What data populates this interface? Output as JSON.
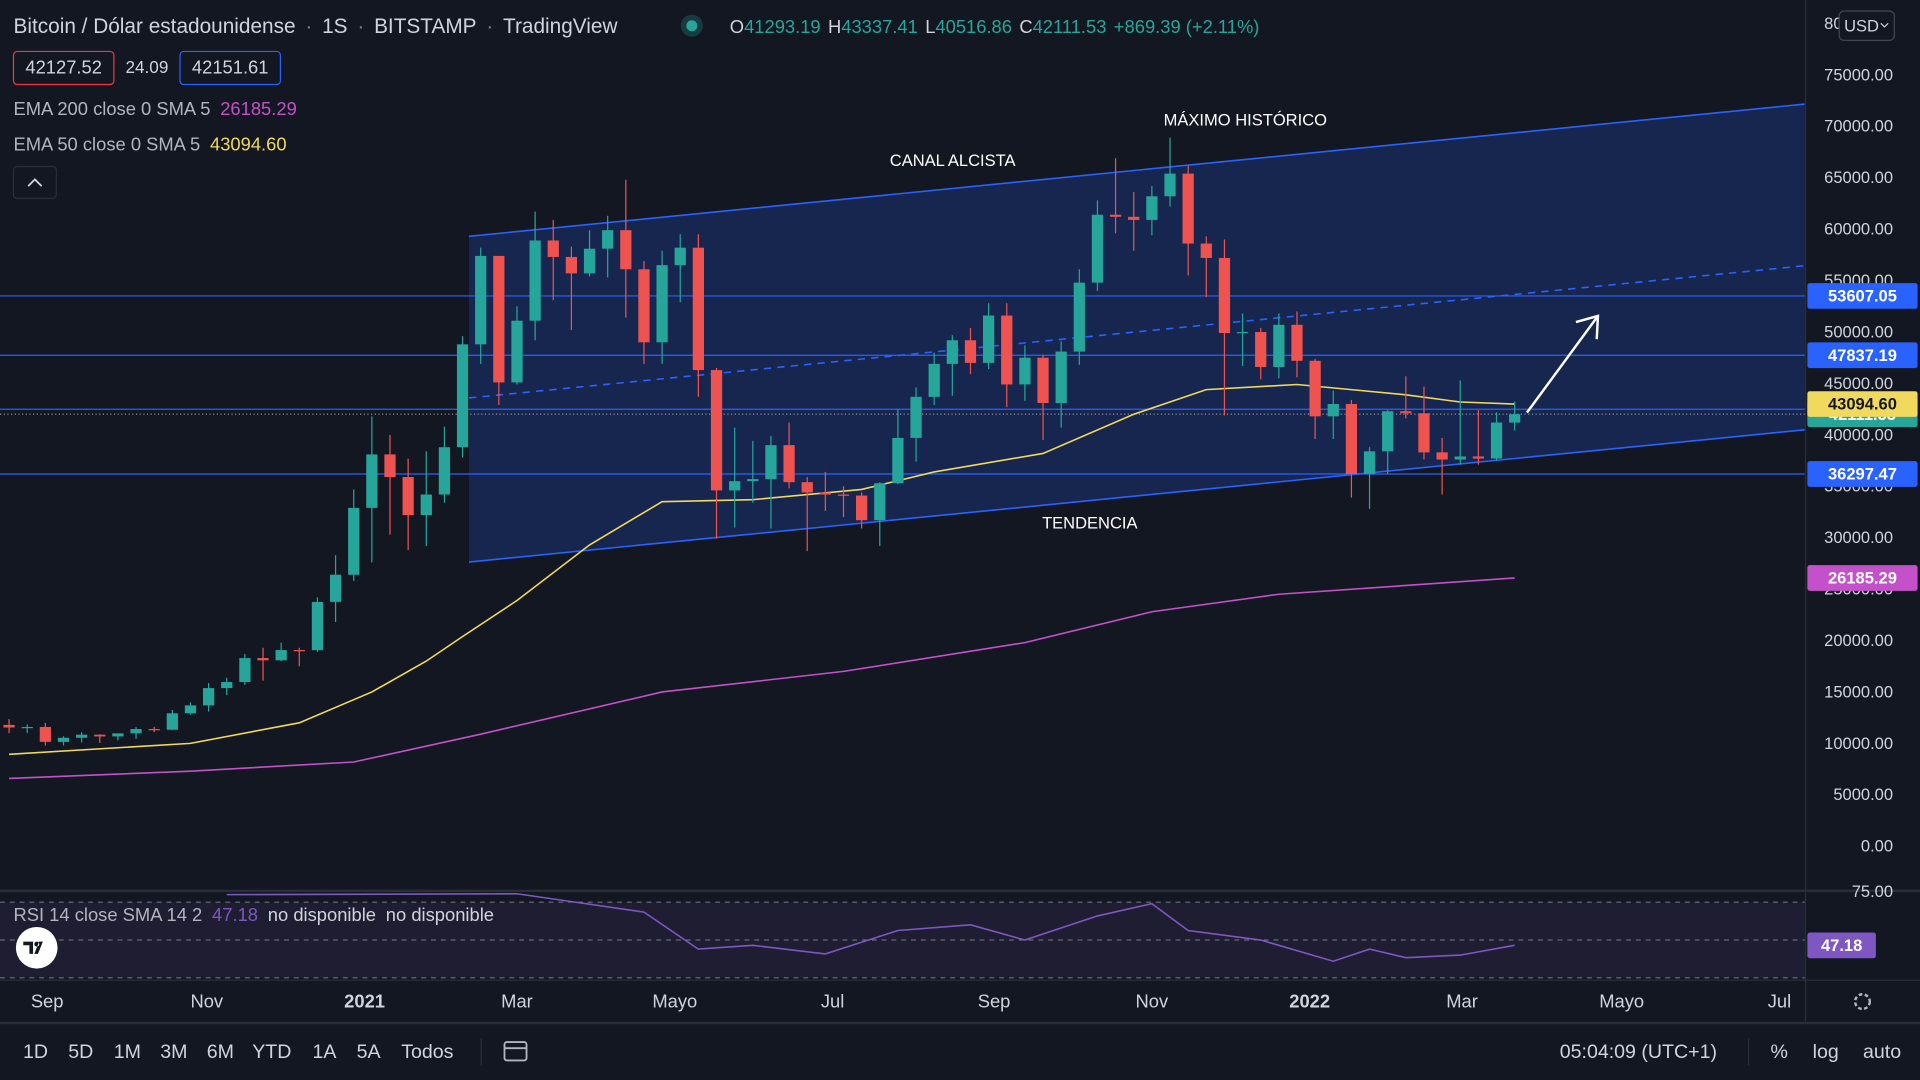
{
  "header": {
    "symbol": "Bitcoin / Dólar estadounidense",
    "separator": "·",
    "interval": "1S",
    "exchange": "BITSTAMP",
    "source": "TradingView",
    "ohlc_letters": [
      "O",
      "H",
      "L",
      "C"
    ],
    "change": "+869.39 (+2.11%)",
    "sell": "42127.52",
    "spread": "24.09",
    "buy": "42151.61",
    "currency": "USD"
  },
  "chart_data": [
    {
      "type": "candlestick",
      "up_color": "#26a69a",
      "down_color": "#ef5350",
      "open": [
        11900,
        11650,
        11700,
        10250,
        10650,
        10950,
        10780,
        11080,
        11500,
        11430,
        13030,
        13800,
        15480,
        16070,
        18400,
        18180,
        19180,
        19170,
        23860,
        26500,
        33000,
        38200,
        36000,
        32300,
        34300,
        38900,
        48900,
        57500,
        45200,
        51200,
        59000,
        57400,
        55800,
        58200,
        60000,
        56200,
        49100,
        56600,
        58300,
        46400,
        34700,
        35600,
        35800,
        39100,
        35500,
        34500,
        34300,
        34200,
        31800,
        35400,
        39800,
        43800,
        47000,
        49300,
        47100,
        51700,
        45000,
        47600,
        43200,
        48200,
        54900,
        61500,
        61300,
        61000,
        63300,
        65500,
        58700,
        57300,
        50000,
        50100,
        46700,
        50800,
        47300,
        41900,
        43100,
        36300,
        38500,
        42400,
        42200,
        38400,
        37700,
        38000,
        37800,
        41293.19
      ],
      "high": [
        12470,
        11950,
        12100,
        10800,
        11200,
        10990,
        11000,
        11700,
        11720,
        13350,
        14100,
        15970,
        16480,
        18800,
        19400,
        19900,
        19400,
        24300,
        28400,
        34800,
        41900,
        40100,
        37800,
        38500,
        40900,
        49700,
        58300,
        57500,
        52600,
        61800,
        61000,
        58400,
        60000,
        61400,
        64900,
        57000,
        58000,
        59600,
        59600,
        46600,
        40800,
        39500,
        40000,
        41300,
        36000,
        36500,
        35100,
        34500,
        35500,
        42600,
        44700,
        48100,
        49800,
        50500,
        52900,
        52900,
        48800,
        47900,
        49200,
        56200,
        62900,
        67000,
        63700,
        64300,
        69000,
        66300,
        59400,
        59100,
        51900,
        50500,
        51900,
        52100,
        47500,
        44400,
        43500,
        38900,
        42500,
        45800,
        44800,
        39800,
        45400,
        42500,
        42300,
        43337.41
      ],
      "low": [
        11100,
        11100,
        9900,
        9900,
        10200,
        10150,
        10400,
        10550,
        11200,
        11400,
        12900,
        13200,
        14800,
        15800,
        16200,
        18100,
        17600,
        19000,
        21900,
        25900,
        27700,
        30400,
        28900,
        29300,
        33500,
        37900,
        47000,
        43000,
        45000,
        49300,
        53200,
        50300,
        55500,
        55400,
        51500,
        47000,
        47000,
        53000,
        43800,
        30000,
        31100,
        33500,
        31000,
        34900,
        28800,
        32700,
        32100,
        31000,
        29300,
        35300,
        37500,
        43000,
        43900,
        46000,
        46500,
        42800,
        43400,
        39600,
        40800,
        46900,
        54100,
        59700,
        58000,
        59500,
        62300,
        55600,
        53500,
        42000,
        46800,
        45500,
        45600,
        45700,
        39700,
        39700,
        34000,
        32900,
        36300,
        41700,
        37700,
        34300,
        37200,
        37200,
        37600,
        40516.86
      ],
      "close": [
        11650,
        11700,
        10250,
        10650,
        10950,
        10780,
        11080,
        11500,
        11430,
        13030,
        13800,
        15480,
        16070,
        18400,
        18180,
        19180,
        19170,
        23860,
        26500,
        33000,
        38200,
        36000,
        32300,
        34300,
        38900,
        48900,
        57500,
        45200,
        51200,
        59000,
        57400,
        55800,
        58200,
        60000,
        56200,
        49100,
        56600,
        58300,
        46400,
        34700,
        35600,
        35800,
        39100,
        35500,
        34500,
        34300,
        34200,
        31800,
        35400,
        39800,
        43800,
        47000,
        49300,
        47100,
        51700,
        45000,
        47600,
        43200,
        48200,
        54900,
        61500,
        61300,
        61000,
        63300,
        65500,
        58700,
        57300,
        50000,
        50100,
        46700,
        50800,
        47300,
        41900,
        43100,
        36300,
        38500,
        42400,
        42200,
        38400,
        37700,
        38000,
        37800,
        41300,
        42111.53
      ],
      "xlim": [
        -0.5,
        99.0
      ],
      "xticks": [
        {
          "value": 2.1,
          "label": "Sep"
        },
        {
          "value": 10.9,
          "label": "Nov"
        },
        {
          "value": 19.6,
          "label": "2021"
        },
        {
          "value": 28,
          "label": "Mar"
        },
        {
          "value": 36.7,
          "label": "Mayo"
        },
        {
          "value": 45.4,
          "label": "Jul"
        },
        {
          "value": 54.3,
          "label": "Sep"
        },
        {
          "value": 63,
          "label": "Nov"
        },
        {
          "value": 71.7,
          "label": "2022"
        },
        {
          "value": 80.1,
          "label": "Mar"
        },
        {
          "value": 88.9,
          "label": "Mayo"
        },
        {
          "value": 97.6,
          "label": "Jul"
        }
      ],
      "ylim": [
        -4170,
        82380
      ],
      "yticks": [
        {
          "value": 0,
          "label": "0.00"
        },
        {
          "value": 5000,
          "label": "5000.00"
        },
        {
          "value": 10000,
          "label": "10000.00"
        },
        {
          "value": 15000,
          "label": "15000.00"
        },
        {
          "value": 20000,
          "label": "20000.00"
        },
        {
          "value": 25000,
          "label": "25000.00"
        },
        {
          "value": 30000,
          "label": "30000.00"
        },
        {
          "value": 35000,
          "label": "35000.00"
        },
        {
          "value": 40000,
          "label": "40000.00"
        },
        {
          "value": 45000,
          "label": "45000.00"
        },
        {
          "value": 50000,
          "label": "50000.00"
        },
        {
          "value": 55000,
          "label": "55000.00"
        },
        {
          "value": 60000,
          "label": "60000.00"
        },
        {
          "value": 65000,
          "label": "65000.00"
        },
        {
          "value": 70000,
          "label": "70000.00"
        },
        {
          "value": 75000,
          "label": "75000.00"
        },
        {
          "value": 80000,
          "label": "80000.00"
        }
      ],
      "overlays": [
        {
          "name": "EMA 200 close 0 SMA 5",
          "color": "#c451c9",
          "x": [
            0,
            10,
            19,
            26,
            36,
            46,
            56,
            63,
            70,
            83
          ],
          "values": [
            6700,
            7400,
            8300,
            11000,
            15100,
            17100,
            19900,
            22900,
            24600,
            26185.29
          ]
        },
        {
          "name": "EMA 50 close 0 SMA 5",
          "color": "#f0d95c",
          "x": [
            0,
            10,
            16,
            20,
            23,
            25,
            28,
            32,
            36,
            41,
            47,
            51,
            57,
            62,
            66,
            71,
            74,
            77,
            80,
            83
          ],
          "values": [
            9050,
            10100,
            12100,
            15100,
            18100,
            20500,
            24000,
            29400,
            33600,
            33800,
            34800,
            36500,
            38300,
            42100,
            44500,
            45000,
            44500,
            44000,
            43300,
            43094.6
          ],
          "last_label": "43094.60"
        }
      ],
      "price_lines": [
        {
          "value": 53607.05,
          "color": "#2962ff"
        },
        {
          "value": 47837.19,
          "color": "#2962ff"
        },
        {
          "value": 42591.87,
          "color": "#2962ff"
        },
        {
          "value": 36297.47,
          "color": "#2962ff"
        }
      ],
      "annotations": [
        "CANAL ALCISTA",
        "MÁXIMO HISTÓRICO",
        "TENDENCIA"
      ]
    },
    {
      "type": "line",
      "name": "RSI 14 close SMA 14 2",
      "notes": [
        "no disponible",
        "no disponible"
      ],
      "color": "#7e57c2",
      "x": [
        12,
        28,
        35,
        38,
        41,
        45,
        49,
        53,
        56,
        60,
        63,
        65,
        69,
        73,
        75,
        77,
        80,
        83
      ],
      "values": [
        74,
        74.4,
        64.7,
        45.2,
        47.2,
        42.7,
        55,
        58,
        50,
        62.7,
        69.2,
        55,
        50,
        38.8,
        45.2,
        40.7,
        42,
        47.18
      ],
      "ylim": [
        29.1,
        76.3
      ],
      "yticks": [
        {
          "value": 75,
          "label": "75.00"
        }
      ],
      "levels": [
        70,
        50,
        30
      ]
    }
  ],
  "toolbar": {
    "timeframes": [
      "1D",
      "5D",
      "1M",
      "3M",
      "6M",
      "YTD",
      "1A",
      "5A",
      "Todos"
    ],
    "time": "05:04:09 (UTC+1)",
    "options": [
      "%",
      "log",
      "auto"
    ]
  }
}
